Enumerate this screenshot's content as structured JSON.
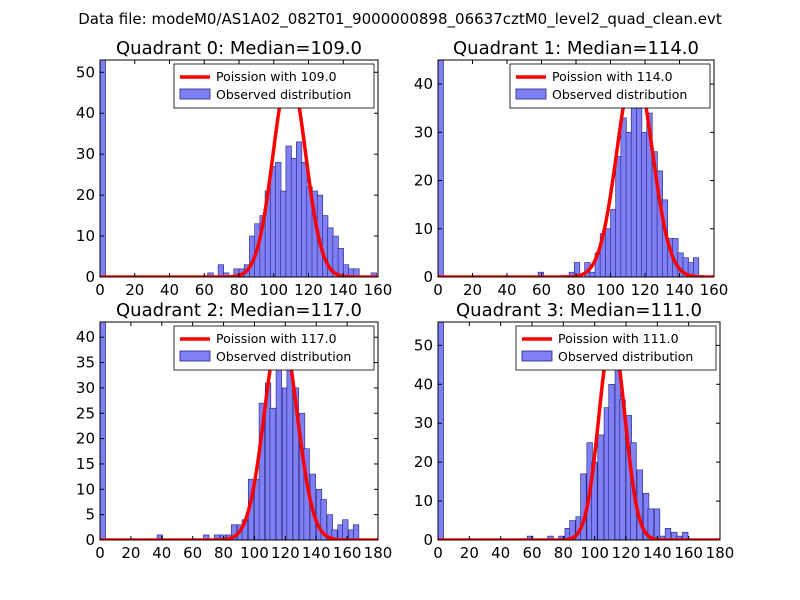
{
  "figure": {
    "suptitle": "Data file: modeM0/AS1A02_082T01_9000000898_06637cztM0_level2_quad_clean.evt",
    "colors": {
      "bar_fill": "#7f7ff6",
      "bar_edge": "#22227a",
      "poisson_line": "#ff0000",
      "legend_frame": "#000000"
    }
  },
  "chart_data": [
    {
      "type": "bar",
      "title": "Quadrant 0: Median=109.0",
      "xlim": [
        0,
        160
      ],
      "ylim": [
        0,
        53
      ],
      "xticks": [
        0,
        20,
        40,
        60,
        80,
        100,
        120,
        140,
        160
      ],
      "yticks": [
        0,
        10,
        20,
        30,
        40,
        50
      ],
      "bin_width": 3.2,
      "bins": [
        {
          "x": 0,
          "y": 53
        },
        {
          "x": 62,
          "y": 1
        },
        {
          "x": 68,
          "y": 3
        },
        {
          "x": 71,
          "y": 1
        },
        {
          "x": 77,
          "y": 2
        },
        {
          "x": 80,
          "y": 2
        },
        {
          "x": 83,
          "y": 3
        },
        {
          "x": 86,
          "y": 10
        },
        {
          "x": 89,
          "y": 13
        },
        {
          "x": 92,
          "y": 15
        },
        {
          "x": 95,
          "y": 21
        },
        {
          "x": 98,
          "y": 27
        },
        {
          "x": 101,
          "y": 28
        },
        {
          "x": 104,
          "y": 21
        },
        {
          "x": 107,
          "y": 32
        },
        {
          "x": 110,
          "y": 29
        },
        {
          "x": 113,
          "y": 33
        },
        {
          "x": 116,
          "y": 28
        },
        {
          "x": 119,
          "y": 22
        },
        {
          "x": 122,
          "y": 21
        },
        {
          "x": 125,
          "y": 20
        },
        {
          "x": 128,
          "y": 15
        },
        {
          "x": 131,
          "y": 12
        },
        {
          "x": 134,
          "y": 10
        },
        {
          "x": 137,
          "y": 7
        },
        {
          "x": 140,
          "y": 3
        },
        {
          "x": 143,
          "y": 2
        },
        {
          "x": 146,
          "y": 2
        },
        {
          "x": 156,
          "y": 1
        }
      ],
      "series": [
        {
          "name": "Poission with 109.0",
          "kind": "line",
          "mean": 109.0,
          "peak": 50,
          "spread": 9.3
        },
        {
          "name": "Observed distribution",
          "kind": "bar"
        }
      ],
      "legend": "top-right"
    },
    {
      "type": "bar",
      "title": "Quadrant 1: Median=114.0",
      "xlim": [
        0,
        160
      ],
      "ylim": [
        0,
        45
      ],
      "xticks": [
        0,
        20,
        40,
        60,
        80,
        100,
        120,
        140,
        160
      ],
      "yticks": [
        0,
        10,
        20,
        30,
        40
      ],
      "bin_width": 3.2,
      "bins": [
        {
          "x": 0,
          "y": 45
        },
        {
          "x": 58,
          "y": 1
        },
        {
          "x": 76,
          "y": 1
        },
        {
          "x": 79,
          "y": 3
        },
        {
          "x": 85,
          "y": 3
        },
        {
          "x": 88,
          "y": 1
        },
        {
          "x": 91,
          "y": 5
        },
        {
          "x": 94,
          "y": 9
        },
        {
          "x": 97,
          "y": 10
        },
        {
          "x": 100,
          "y": 14
        },
        {
          "x": 103,
          "y": 25
        },
        {
          "x": 106,
          "y": 33
        },
        {
          "x": 109,
          "y": 30
        },
        {
          "x": 112,
          "y": 41
        },
        {
          "x": 115,
          "y": 37
        },
        {
          "x": 118,
          "y": 30
        },
        {
          "x": 121,
          "y": 34
        },
        {
          "x": 124,
          "y": 26
        },
        {
          "x": 127,
          "y": 22
        },
        {
          "x": 130,
          "y": 16
        },
        {
          "x": 133,
          "y": 8
        },
        {
          "x": 136,
          "y": 8
        },
        {
          "x": 139,
          "y": 5
        },
        {
          "x": 142,
          "y": 4
        },
        {
          "x": 145,
          "y": 3
        },
        {
          "x": 148,
          "y": 4
        }
      ],
      "series": [
        {
          "name": "Poission with 114.0",
          "kind": "line",
          "mean": 114.0,
          "peak": 43.5,
          "spread": 10.2
        },
        {
          "name": "Observed distribution",
          "kind": "bar"
        }
      ],
      "legend": "top-right"
    },
    {
      "type": "bar",
      "title": "Quadrant 2: Median=117.0",
      "xlim": [
        0,
        180
      ],
      "ylim": [
        0,
        43
      ],
      "xticks": [
        0,
        20,
        40,
        60,
        80,
        100,
        120,
        140,
        160,
        180
      ],
      "yticks": [
        0,
        5,
        10,
        15,
        20,
        25,
        30,
        35,
        40
      ],
      "bin_width": 3.6,
      "bins": [
        {
          "x": 0,
          "y": 43
        },
        {
          "x": 37,
          "y": 1
        },
        {
          "x": 67,
          "y": 1
        },
        {
          "x": 74,
          "y": 1
        },
        {
          "x": 78,
          "y": 1
        },
        {
          "x": 82,
          "y": 1
        },
        {
          "x": 85,
          "y": 3
        },
        {
          "x": 89,
          "y": 3
        },
        {
          "x": 92,
          "y": 4
        },
        {
          "x": 96,
          "y": 12
        },
        {
          "x": 100,
          "y": 12
        },
        {
          "x": 103,
          "y": 27
        },
        {
          "x": 107,
          "y": 31
        },
        {
          "x": 110,
          "y": 26
        },
        {
          "x": 114,
          "y": 40
        },
        {
          "x": 118,
          "y": 30
        },
        {
          "x": 121,
          "y": 34
        },
        {
          "x": 125,
          "y": 30
        },
        {
          "x": 129,
          "y": 25
        },
        {
          "x": 132,
          "y": 18
        },
        {
          "x": 136,
          "y": 13
        },
        {
          "x": 140,
          "y": 10
        },
        {
          "x": 143,
          "y": 8
        },
        {
          "x": 147,
          "y": 5
        },
        {
          "x": 150,
          "y": 2
        },
        {
          "x": 154,
          "y": 3
        },
        {
          "x": 157,
          "y": 4
        },
        {
          "x": 161,
          "y": 2
        },
        {
          "x": 164,
          "y": 3
        }
      ],
      "series": [
        {
          "name": "Poission with 117.0",
          "kind": "line",
          "mean": 117.0,
          "peak": 41.7,
          "spread": 10.5
        },
        {
          "name": "Observed distribution",
          "kind": "bar"
        }
      ],
      "legend": "top-right"
    },
    {
      "type": "bar",
      "title": "Quadrant 3: Median=111.0",
      "xlim": [
        0,
        180
      ],
      "ylim": [
        0,
        56
      ],
      "xticks": [
        0,
        20,
        40,
        60,
        80,
        100,
        120,
        140,
        160,
        180
      ],
      "yticks": [
        0,
        10,
        20,
        30,
        40,
        50
      ],
      "bin_width": 3.6,
      "bins": [
        {
          "x": 0,
          "y": 56
        },
        {
          "x": 57,
          "y": 1
        },
        {
          "x": 70,
          "y": 1
        },
        {
          "x": 77,
          "y": 1
        },
        {
          "x": 81,
          "y": 3
        },
        {
          "x": 84,
          "y": 5
        },
        {
          "x": 88,
          "y": 6
        },
        {
          "x": 91,
          "y": 17
        },
        {
          "x": 95,
          "y": 25
        },
        {
          "x": 98,
          "y": 20
        },
        {
          "x": 102,
          "y": 27
        },
        {
          "x": 106,
          "y": 34
        },
        {
          "x": 109,
          "y": 40
        },
        {
          "x": 113,
          "y": 51
        },
        {
          "x": 116,
          "y": 36
        },
        {
          "x": 120,
          "y": 32
        },
        {
          "x": 123,
          "y": 25
        },
        {
          "x": 127,
          "y": 18
        },
        {
          "x": 131,
          "y": 12
        },
        {
          "x": 134,
          "y": 8
        },
        {
          "x": 138,
          "y": 8
        },
        {
          "x": 141,
          "y": 1
        },
        {
          "x": 145,
          "y": 3
        },
        {
          "x": 149,
          "y": 2
        },
        {
          "x": 152,
          "y": 1
        },
        {
          "x": 156,
          "y": 2
        }
      ],
      "series": [
        {
          "name": "Poission with 111.0",
          "kind": "line",
          "mean": 111.0,
          "peak": 52.5,
          "spread": 8.3
        },
        {
          "name": "Observed distribution",
          "kind": "bar"
        }
      ],
      "legend": "top-right"
    }
  ]
}
